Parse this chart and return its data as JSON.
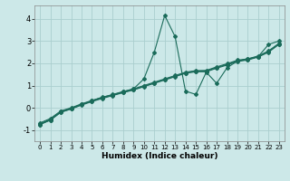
{
  "xlabel": "Humidex (Indice chaleur)",
  "bg_color": "#cce8e8",
  "grid_color": "#aacece",
  "line_color": "#1a6b5a",
  "xlim": [
    -0.5,
    23.5
  ],
  "ylim": [
    -1.5,
    4.6
  ],
  "xticks": [
    0,
    1,
    2,
    3,
    4,
    5,
    6,
    7,
    8,
    9,
    10,
    11,
    12,
    13,
    14,
    15,
    16,
    17,
    18,
    19,
    20,
    21,
    22,
    23
  ],
  "yticks": [
    -1,
    0,
    1,
    2,
    3,
    4
  ],
  "line1_x": [
    0,
    1,
    2,
    3,
    4,
    5,
    6,
    7,
    8,
    9,
    10,
    11,
    12,
    13,
    14,
    15,
    16,
    17,
    18,
    19,
    20,
    21,
    22,
    23
  ],
  "line1_y": [
    -0.75,
    -0.55,
    -0.2,
    -0.05,
    0.15,
    0.32,
    0.48,
    0.58,
    0.72,
    0.85,
    1.3,
    2.5,
    4.15,
    3.2,
    0.75,
    0.6,
    1.6,
    1.1,
    1.8,
    2.1,
    2.2,
    2.3,
    2.85,
    3.0
  ],
  "line2_x": [
    0,
    1,
    2,
    3,
    4,
    5,
    6,
    7,
    8,
    9,
    10,
    11,
    12,
    13,
    14,
    15,
    16,
    17,
    18,
    19,
    20,
    21,
    22,
    23
  ],
  "line2_y": [
    -0.75,
    -0.55,
    -0.2,
    -0.05,
    0.12,
    0.28,
    0.42,
    0.55,
    0.68,
    0.8,
    0.95,
    1.1,
    1.25,
    1.4,
    1.55,
    1.62,
    1.62,
    1.78,
    1.92,
    2.08,
    2.15,
    2.28,
    2.5,
    2.85
  ],
  "line3_x": [
    0,
    1,
    2,
    3,
    4,
    5,
    6,
    7,
    8,
    9,
    10,
    11,
    12,
    13,
    14,
    15,
    16,
    17,
    18,
    19,
    20,
    21,
    22,
    23
  ],
  "line3_y": [
    -0.68,
    -0.48,
    -0.14,
    0.0,
    0.18,
    0.33,
    0.47,
    0.6,
    0.73,
    0.85,
    1.0,
    1.15,
    1.3,
    1.45,
    1.6,
    1.67,
    1.68,
    1.84,
    1.98,
    2.14,
    2.2,
    2.33,
    2.56,
    2.9
  ],
  "line4_x": [
    0,
    1,
    2,
    3,
    4,
    5,
    6,
    7,
    8,
    9,
    10,
    11,
    12,
    13,
    14,
    15,
    16,
    17,
    18,
    19,
    20,
    21,
    22,
    23
  ],
  "line4_y": [
    -0.72,
    -0.52,
    -0.17,
    -0.02,
    0.15,
    0.3,
    0.45,
    0.57,
    0.7,
    0.82,
    0.97,
    1.12,
    1.27,
    1.42,
    1.57,
    1.65,
    1.65,
    1.81,
    1.95,
    2.11,
    2.17,
    2.3,
    2.53,
    2.87
  ]
}
